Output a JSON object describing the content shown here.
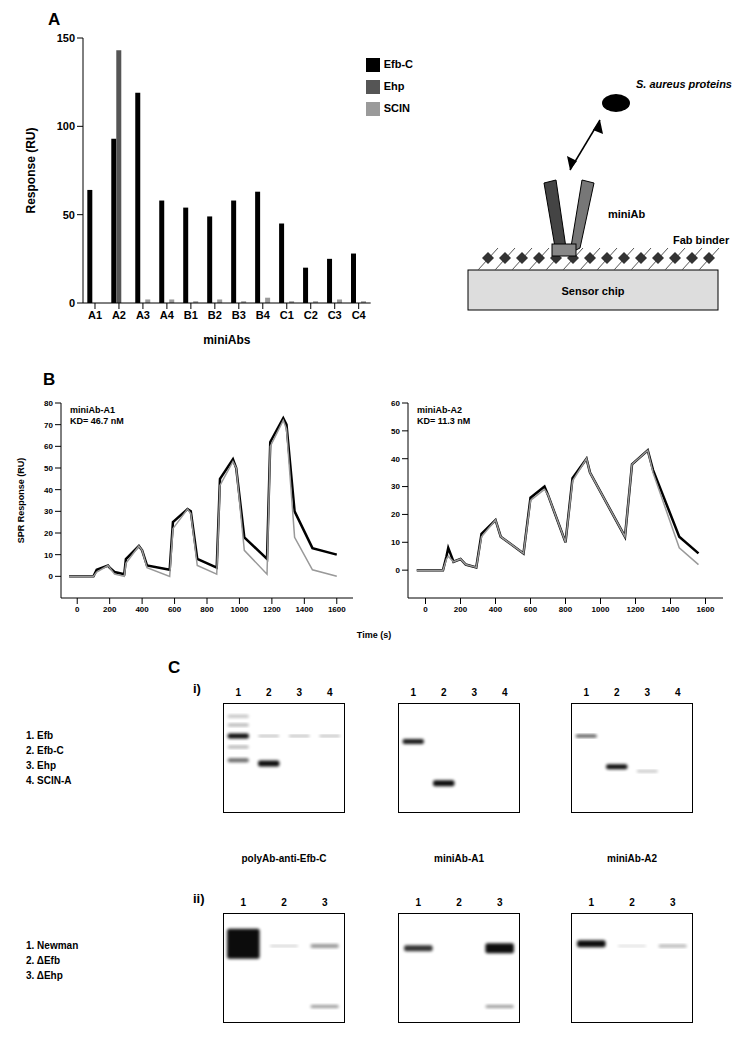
{
  "chart_data": [
    {
      "type": "bar",
      "categories": [
        "A1",
        "A2",
        "A3",
        "A4",
        "B1",
        "B2",
        "B3",
        "B4",
        "C1",
        "C2",
        "C3",
        "C4"
      ],
      "series": [
        {
          "name": "Efb-C",
          "color": "#000000",
          "values": [
            64,
            93,
            119,
            58,
            54,
            49,
            58,
            63,
            45,
            20,
            25,
            28
          ]
        },
        {
          "name": "Ehp",
          "color": "#555555",
          "values": [
            0,
            143,
            0,
            0,
            0,
            0,
            0,
            0,
            0,
            0,
            0,
            0
          ]
        },
        {
          "name": "SCIN",
          "color": "#9a9a9a",
          "values": [
            0,
            0,
            2,
            2,
            1,
            2,
            1,
            3,
            1,
            1,
            2,
            1
          ]
        }
      ],
      "ylim": [
        0,
        150
      ],
      "yticks": [
        0,
        50,
        100,
        150
      ],
      "ylabel": "Response (RU)",
      "xlabel": "miniAbs",
      "legend": "upper right",
      "grid": false
    },
    {
      "type": "line",
      "title": "miniAb-A1",
      "annotations": [
        "KD= 46.7 nM"
      ],
      "x": [
        -50,
        100,
        120,
        190,
        200,
        230,
        290,
        300,
        380,
        400,
        430,
        570,
        590,
        680,
        700,
        740,
        860,
        880,
        960,
        980,
        1030,
        1170,
        1190,
        1270,
        1290,
        1340,
        1450,
        1600
      ],
      "series": [
        {
          "color": "#000000",
          "values": [
            0,
            0,
            3,
            5,
            4,
            2,
            1,
            8,
            14,
            12,
            5,
            3,
            25,
            31,
            30,
            8,
            4,
            45,
            54,
            50,
            18,
            8,
            62,
            73,
            70,
            30,
            13,
            10
          ]
        },
        {
          "color": "#999999",
          "values": [
            0,
            0,
            2,
            5,
            4,
            1,
            0,
            6,
            14,
            12,
            4,
            0,
            22,
            31,
            29,
            5,
            1,
            42,
            53,
            50,
            12,
            1,
            60,
            72,
            68,
            18,
            3,
            0
          ]
        }
      ],
      "xlim": [
        -100,
        1700
      ],
      "xticks": [
        0,
        200,
        400,
        600,
        800,
        1000,
        1200,
        1400,
        1600
      ],
      "ylim": [
        -10,
        80
      ],
      "yticks": [
        0,
        10,
        20,
        30,
        40,
        50,
        60,
        70,
        80
      ],
      "ylabel": "SPR Response (RU)"
    },
    {
      "type": "line",
      "title": "miniAb-A2",
      "annotations": [
        "KD= 11.3 nM"
      ],
      "x": [
        -50,
        100,
        120,
        130,
        160,
        200,
        230,
        290,
        320,
        400,
        430,
        560,
        600,
        680,
        700,
        800,
        840,
        920,
        940,
        1140,
        1180,
        1270,
        1300,
        1450,
        1560
      ],
      "series": [
        {
          "color": "#000000",
          "values": [
            0,
            0,
            5,
            8,
            3,
            4,
            2,
            1,
            13,
            18,
            12,
            6,
            26,
            30,
            27,
            10,
            33,
            40,
            35,
            12,
            38,
            43,
            36,
            12,
            6
          ]
        },
        {
          "color": "#999999",
          "values": [
            0,
            0,
            4,
            5,
            3,
            4,
            2,
            1,
            12,
            18,
            12,
            6,
            25,
            29,
            27,
            10,
            32,
            40,
            35,
            12,
            38,
            43,
            35,
            8,
            2
          ]
        }
      ],
      "xlim": [
        -100,
        1700
      ],
      "xticks": [
        0,
        200,
        400,
        600,
        800,
        1000,
        1200,
        1400,
        1600
      ],
      "ylim": [
        -10,
        60
      ],
      "yticks": [
        0,
        10,
        20,
        30,
        40,
        50,
        60
      ]
    }
  ],
  "panel_labels": [
    "A",
    "B",
    "C"
  ],
  "shared_xlabel": "Time (s)",
  "schematic": {
    "protein": "S. aureus proteins",
    "antibody": "miniAb",
    "binder": "Fab binder",
    "chip": "Sensor chip"
  },
  "blots": {
    "rows": [
      {
        "label": "i)",
        "lanes": [
          "1",
          "2",
          "3",
          "4"
        ],
        "key": [
          "1. Efb",
          "2. Efb-C",
          "3. Ehp",
          "4. SCIN-A"
        ]
      },
      {
        "label": "ii)",
        "lanes": [
          "1",
          "2",
          "3"
        ],
        "key": [
          "1. Newman",
          "2. ΔEfb",
          "3. ΔEhp"
        ]
      }
    ],
    "captions": [
      "polyAb-anti-Efb-C",
      "miniAb-A1",
      "miniAb-A2"
    ]
  }
}
